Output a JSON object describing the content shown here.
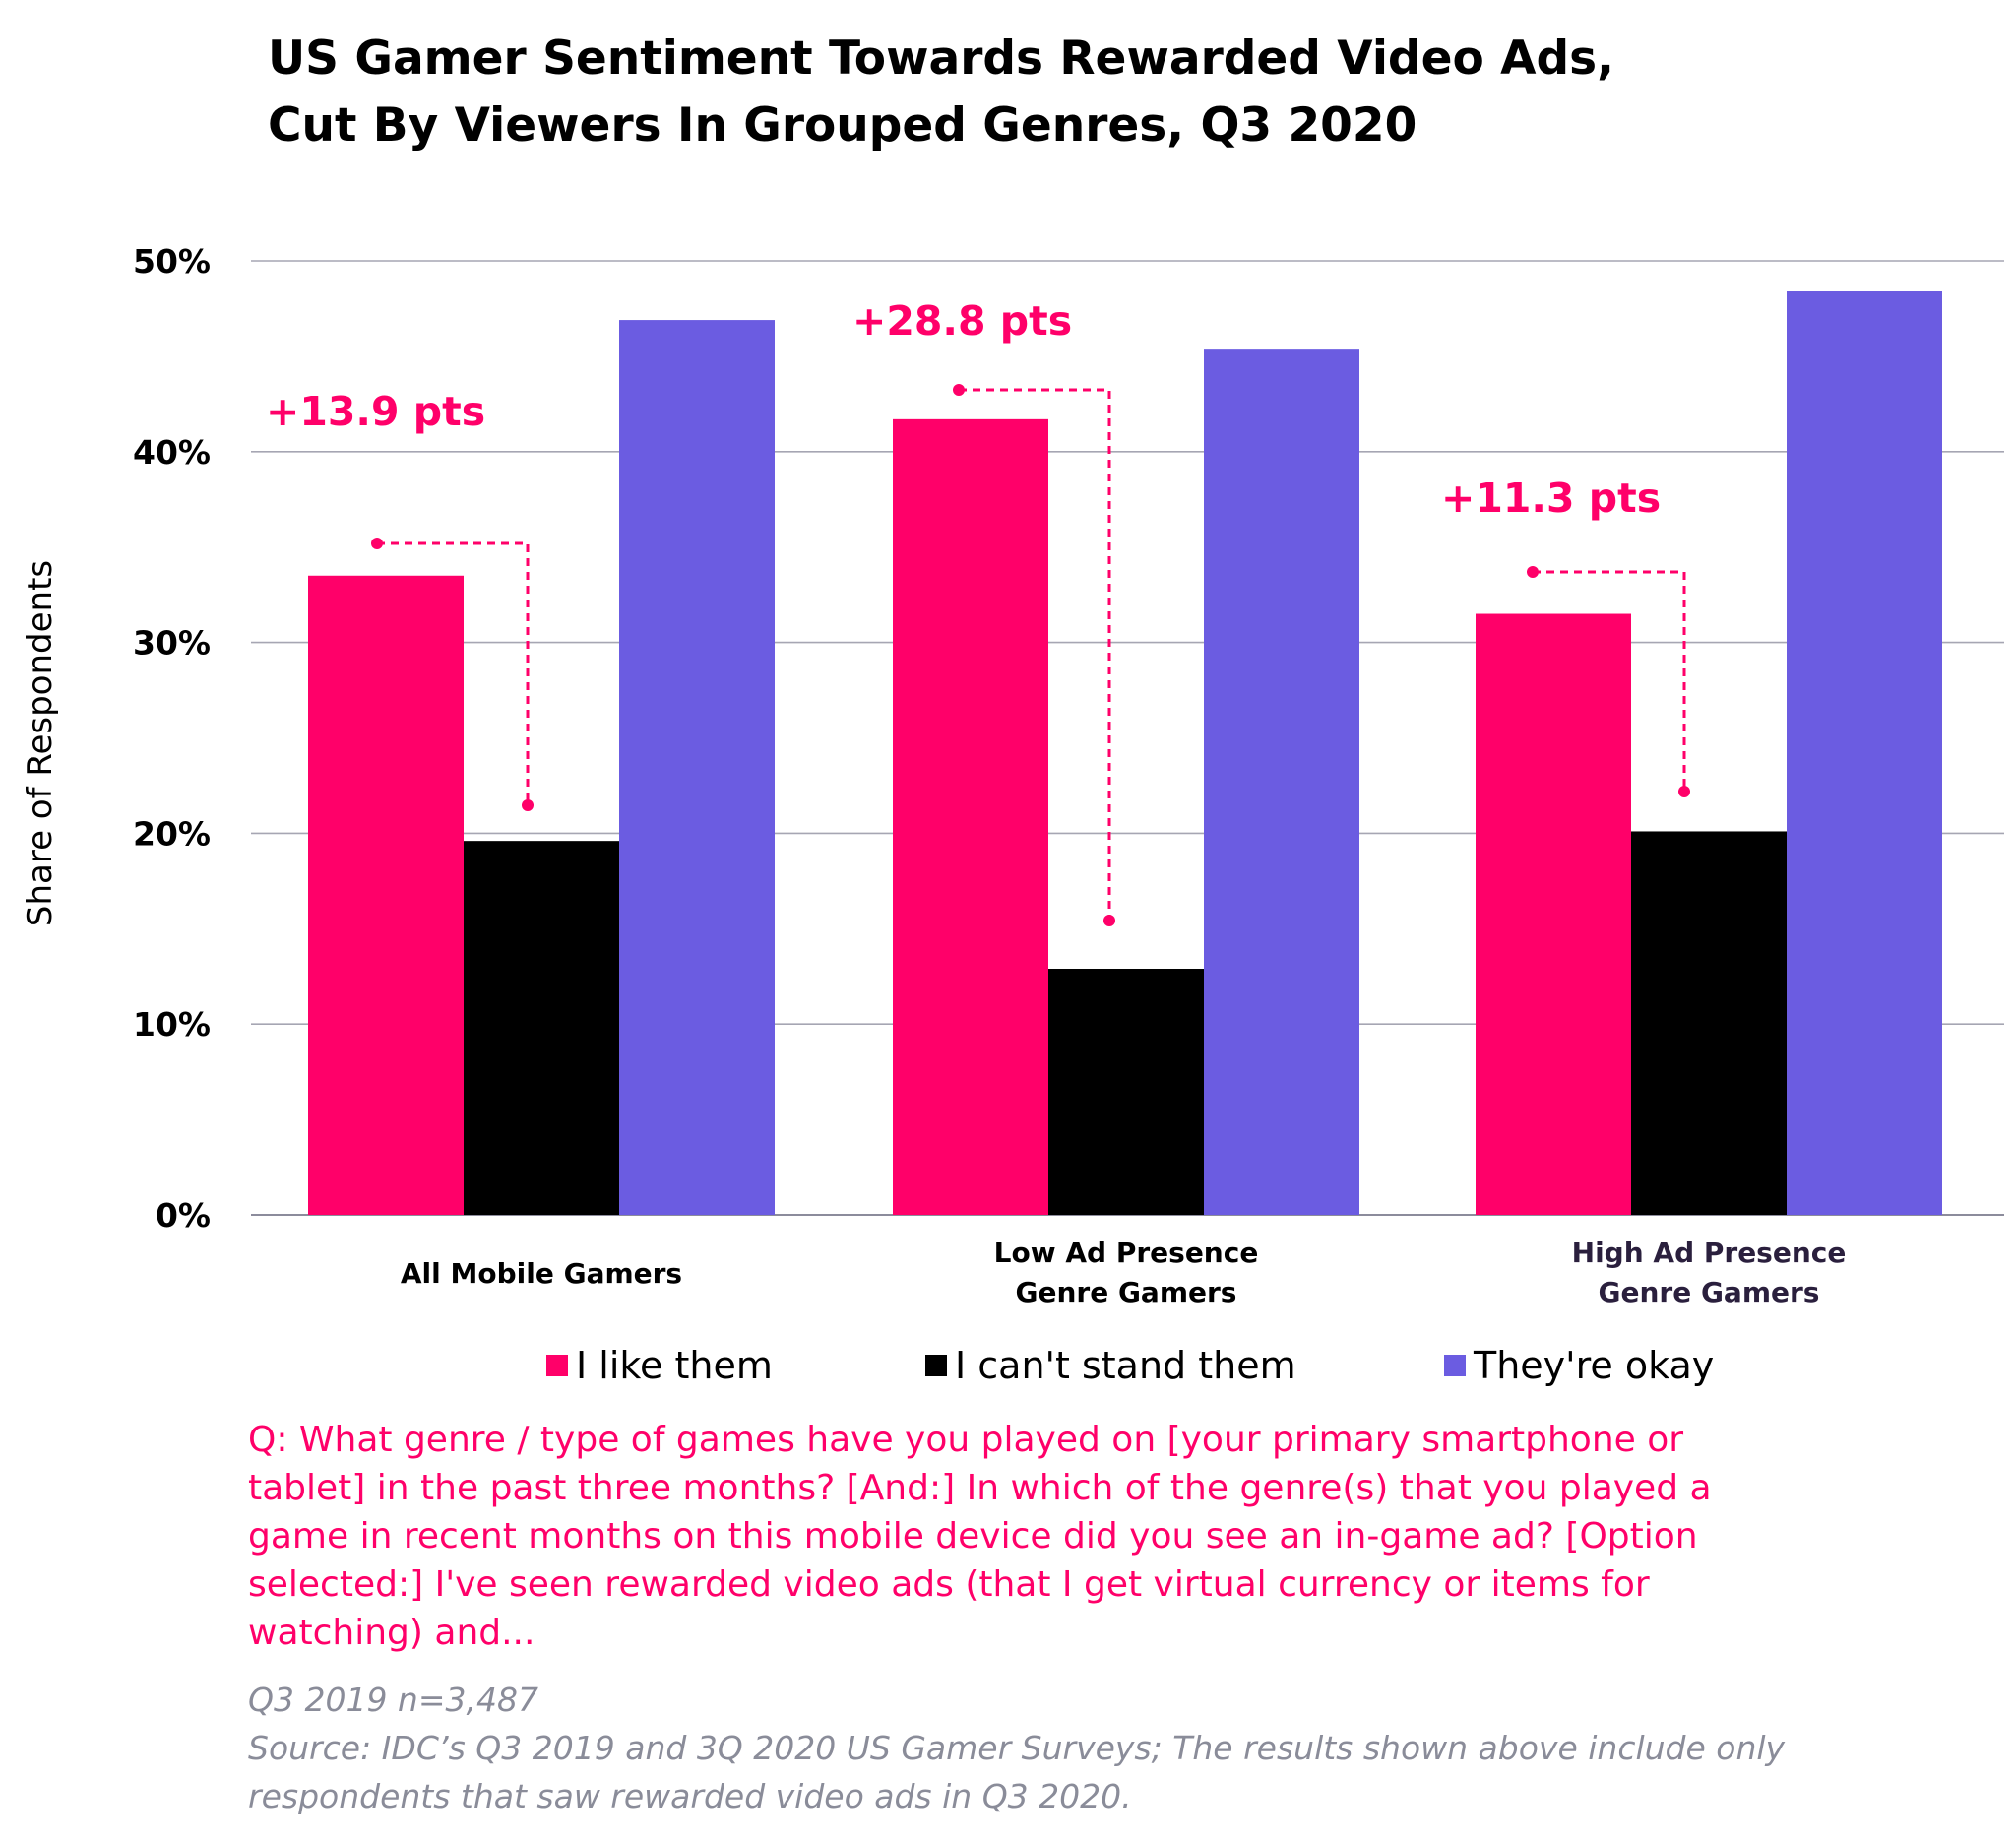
{
  "title": {
    "line1": "US Gamer Sentiment Towards Rewarded Video Ads,",
    "line2": "Cut By Viewers In Grouped Genres, Q3 2020"
  },
  "chart_data": {
    "type": "bar",
    "title": "US Gamer Sentiment Towards Rewarded Video Ads, Cut By Viewers In Grouped Genres, Q3 2020",
    "xlabel": "",
    "ylabel": "Share of Respondents",
    "ylim": [
      0,
      50
    ],
    "yticks": [
      0,
      10,
      20,
      30,
      40,
      50
    ],
    "ytick_labels": [
      "0%",
      "10%",
      "20%",
      "30%",
      "40%",
      "50%"
    ],
    "grid": true,
    "categories": [
      [
        "All Mobile Gamers"
      ],
      [
        "Low Ad Presence",
        "Genre Gamers"
      ],
      [
        "High Ad Presence",
        "Genre Gamers"
      ]
    ],
    "series": [
      {
        "name": "I like them",
        "color": "#ff0069",
        "values": [
          33.5,
          41.7,
          31.5
        ]
      },
      {
        "name": "I can't stand them",
        "color": "#000000",
        "values": [
          19.6,
          12.9,
          20.1
        ]
      },
      {
        "name": "They're okay",
        "color": "#6b5ce1",
        "values": [
          46.9,
          45.4,
          48.4
        ]
      }
    ],
    "annotations": [
      {
        "text": "+13.9 pts",
        "category": 0
      },
      {
        "text": "+28.8 pts",
        "category": 1
      },
      {
        "text": "+11.3 pts",
        "category": 2
      }
    ],
    "legend_position": "bottom"
  },
  "footer": {
    "question": "Q: What genre / type of games have you played on [your primary smartphone or tablet] in the past three months? [And:] In which of the genre(s) that you played a game in recent months on this mobile device did you see an in-game ad? [Option selected:] I've seen rewarded video ads (that I get virtual currency or items for watching) and...",
    "sample": "Q3 2019 n=3,487",
    "source": "Source: IDC’s Q3 2019 and 3Q 2020 US Gamer Surveys; The results shown above include only respondents that saw rewarded video ads in Q3 2020."
  }
}
